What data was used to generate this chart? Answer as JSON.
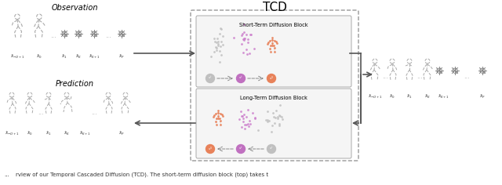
{
  "title": "TCD",
  "title_fontsize": 11,
  "bg_color": "#ffffff",
  "short_block_title": "Short-Term Diffusion Block",
  "long_block_title": "Long-Term Diffusion Block",
  "observation_label": "Observation",
  "prediction_label": "Prediction",
  "color_gray": "#aaaaaa",
  "color_purple": "#c070c0",
  "color_orange": "#e8825a",
  "color_dot_gray": "#c0c0c0",
  "color_dot_purple": "#cc80cc",
  "color_dot_orange": "#e8825a",
  "arrow_color": "#555555",
  "figure_color": "#aaaaaa",
  "dashed_box_color": "#999999",
  "inner_box_color": "#aaaaaa",
  "inner_box_fill": "#f5f5f5",
  "obs_label_color": "#333333",
  "bottom_text": "rview of our Temporal Cascaded Diffusion (TCD). The short-term diffusion block (top) takes t"
}
